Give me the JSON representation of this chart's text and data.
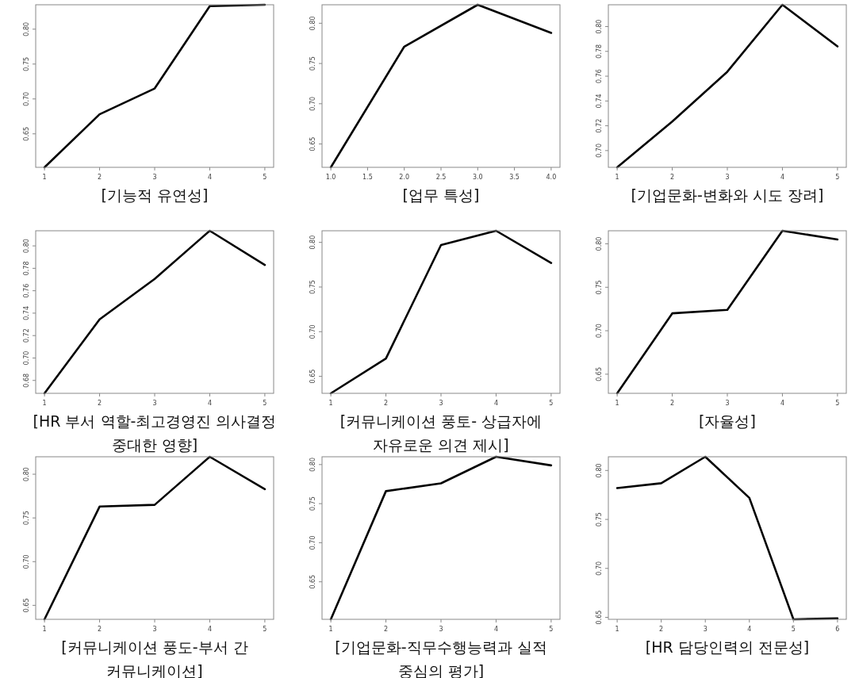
{
  "chart_data": [
    {
      "type": "line",
      "title": "[기능적 유연성]",
      "x": [
        1,
        2,
        3,
        4,
        5
      ],
      "xlim": [
        0.84,
        5.16
      ],
      "xticks": [
        1,
        2,
        3,
        4,
        5
      ],
      "ylim": [
        0.602,
        0.835
      ],
      "yticks": [
        {
          "value": 0.65,
          "label": "0.65"
        },
        {
          "value": 0.7,
          "label": "0.70"
        },
        {
          "value": 0.75,
          "label": "0.75"
        },
        {
          "value": 0.8,
          "label": "0.80"
        }
      ],
      "series": [
        {
          "color": "#000000",
          "values": [
            0.602,
            0.678,
            0.715,
            0.833,
            0.835
          ]
        }
      ]
    },
    {
      "type": "line",
      "title": "[업무 특성]",
      "x": [
        1,
        2,
        3,
        4
      ],
      "xlim": [
        0.88,
        4.12
      ],
      "xticks": [
        {
          "value": 1,
          "label": "1.0"
        },
        {
          "value": 1.5,
          "label": "1.5"
        },
        {
          "value": 2,
          "label": "2.0"
        },
        {
          "value": 2.5,
          "label": "2.5"
        },
        {
          "value": 3,
          "label": "3.0"
        },
        {
          "value": 3.5,
          "label": "3.5"
        },
        {
          "value": 4,
          "label": "4.0"
        }
      ],
      "ylim": [
        0.621,
        0.823
      ],
      "yticks": [
        {
          "value": 0.65,
          "label": "0.65"
        },
        {
          "value": 0.7,
          "label": "0.70"
        },
        {
          "value": 0.75,
          "label": "0.75"
        },
        {
          "value": 0.8,
          "label": "0.80"
        }
      ],
      "series": [
        {
          "color": "#000000",
          "values": [
            0.621,
            0.771,
            0.823,
            0.788
          ]
        }
      ]
    },
    {
      "type": "line",
      "title": "[기업문화-변화와 시도 장려]",
      "x": [
        1,
        2,
        3,
        4,
        5
      ],
      "xlim": [
        0.84,
        5.16
      ],
      "xticks": [
        1,
        2,
        3,
        4,
        5
      ],
      "ylim": [
        0.6865,
        0.8176
      ],
      "yticks": [
        {
          "value": 0.7,
          "label": "0.70"
        },
        {
          "value": 0.72,
          "label": "0.72"
        },
        {
          "value": 0.74,
          "label": "0.74"
        },
        {
          "value": 0.76,
          "label": "0.76"
        },
        {
          "value": 0.78,
          "label": "0.78"
        },
        {
          "value": 0.8,
          "label": "0.80"
        }
      ],
      "series": [
        {
          "color": "#000000",
          "values": [
            0.6865,
            0.7234,
            0.7636,
            0.8176,
            0.784
          ]
        }
      ]
    },
    {
      "type": "line",
      "title": "[HR 부서 역할-최고경영진 의사결정 중대한 영향]",
      "x": [
        1,
        2,
        3,
        4,
        5
      ],
      "xlim": [
        0.84,
        5.16
      ],
      "xticks": [
        1,
        2,
        3,
        4,
        5
      ],
      "ylim": [
        0.6685,
        0.8135
      ],
      "yticks": [
        {
          "value": 0.68,
          "label": "0.68"
        },
        {
          "value": 0.7,
          "label": "0.70"
        },
        {
          "value": 0.72,
          "label": "0.72"
        },
        {
          "value": 0.74,
          "label": "0.74"
        },
        {
          "value": 0.76,
          "label": "0.76"
        },
        {
          "value": 0.78,
          "label": "0.78"
        },
        {
          "value": 0.8,
          "label": "0.80"
        }
      ],
      "series": [
        {
          "color": "#000000",
          "values": [
            0.6685,
            0.7345,
            0.7705,
            0.8135,
            0.783
          ]
        }
      ]
    },
    {
      "type": "line",
      "title": "[커뮤니케이션 풍토- 상급자에 자유로운 의견 제시]",
      "x": [
        1,
        2,
        3,
        4,
        5
      ],
      "xlim": [
        0.84,
        5.16
      ],
      "xticks": [
        1,
        2,
        3,
        4,
        5
      ],
      "ylim": [
        0.631,
        0.813
      ],
      "yticks": [
        {
          "value": 0.65,
          "label": "0.65"
        },
        {
          "value": 0.7,
          "label": "0.70"
        },
        {
          "value": 0.75,
          "label": "0.75"
        },
        {
          "value": 0.8,
          "label": "0.80"
        }
      ],
      "series": [
        {
          "color": "#000000",
          "values": [
            0.631,
            0.67,
            0.797,
            0.813,
            0.777
          ]
        }
      ]
    },
    {
      "type": "line",
      "title": "[자율성]",
      "x": [
        1,
        2,
        3,
        4,
        5
      ],
      "xlim": [
        0.84,
        5.16
      ],
      "xticks": [
        1,
        2,
        3,
        4,
        5
      ],
      "ylim": [
        0.628,
        0.815
      ],
      "yticks": [
        {
          "value": 0.65,
          "label": "0.65"
        },
        {
          "value": 0.7,
          "label": "0.70"
        },
        {
          "value": 0.75,
          "label": "0.75"
        },
        {
          "value": 0.8,
          "label": "0.80"
        }
      ],
      "series": [
        {
          "color": "#000000",
          "values": [
            0.628,
            0.72,
            0.724,
            0.815,
            0.805
          ]
        }
      ]
    },
    {
      "type": "line",
      "title": "[커뮤니케이션 풍도-부서 간 커뮤니케이션]",
      "x": [
        1,
        2,
        3,
        4,
        5
      ],
      "xlim": [
        0.84,
        5.16
      ],
      "xticks": [
        1,
        2,
        3,
        4,
        5
      ],
      "ylim": [
        0.634,
        0.82
      ],
      "yticks": [
        {
          "value": 0.65,
          "label": "0.65"
        },
        {
          "value": 0.7,
          "label": "0.70"
        },
        {
          "value": 0.75,
          "label": "0.75"
        },
        {
          "value": 0.8,
          "label": "0.80"
        }
      ],
      "series": [
        {
          "color": "#000000",
          "values": [
            0.634,
            0.763,
            0.765,
            0.82,
            0.783
          ]
        }
      ]
    },
    {
      "type": "line",
      "title": "[기업문화-직무수행능력과 실적 중심의 평가]",
      "x": [
        1,
        2,
        3,
        4,
        5
      ],
      "xlim": [
        0.84,
        5.16
      ],
      "xticks": [
        1,
        2,
        3,
        4,
        5
      ],
      "ylim": [
        0.602,
        0.81
      ],
      "yticks": [
        {
          "value": 0.65,
          "label": "0.65"
        },
        {
          "value": 0.7,
          "label": "0.70"
        },
        {
          "value": 0.75,
          "label": "0.75"
        },
        {
          "value": 0.8,
          "label": "0.80"
        }
      ],
      "series": [
        {
          "color": "#000000",
          "values": [
            0.602,
            0.766,
            0.776,
            0.81,
            0.799
          ]
        }
      ]
    },
    {
      "type": "line",
      "title": "[HR 담당인력의 전문성]",
      "x": [
        1,
        2,
        3,
        4,
        5,
        6
      ],
      "xlim": [
        0.8,
        6.2
      ],
      "xticks": [
        1,
        2,
        3,
        4,
        5,
        6
      ],
      "ylim": [
        0.648,
        0.814
      ],
      "yticks": [
        {
          "value": 0.65,
          "label": "0.65"
        },
        {
          "value": 0.7,
          "label": "0.70"
        },
        {
          "value": 0.75,
          "label": "0.75"
        },
        {
          "value": 0.8,
          "label": "0.80"
        }
      ],
      "series": [
        {
          "color": "#000000",
          "values": [
            0.782,
            0.787,
            0.814,
            0.772,
            0.648,
            0.649
          ]
        }
      ]
    }
  ]
}
